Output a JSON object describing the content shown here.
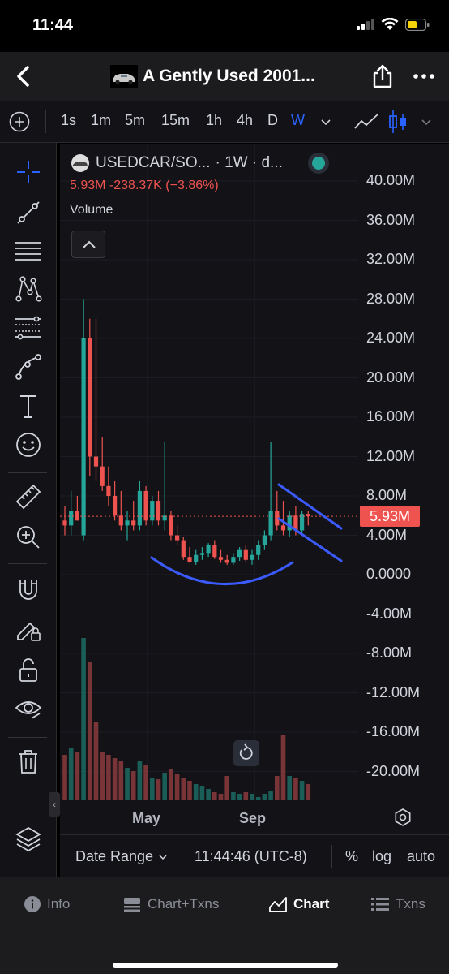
{
  "status_bar": {
    "time": "11:44"
  },
  "header": {
    "title": "A Gently Used 2001..."
  },
  "toolbar": {
    "timeframes": [
      "1s",
      "1m",
      "5m",
      "15m",
      "1h",
      "4h",
      "D",
      "W"
    ],
    "active_timeframe": "W"
  },
  "legend": {
    "symbol": "USEDCAR/SO...",
    "interval": "· 1W · d...",
    "price_change": "5.93M  -238.37K (−3.86%)",
    "volume_label": "Volume"
  },
  "price_tag": "5.93M",
  "chart_data": {
    "type": "candlestick",
    "y_ticks": [
      "40.00M",
      "36.00M",
      "32.00M",
      "28.00M",
      "24.00M",
      "20.00M",
      "16.00M",
      "12.00M",
      "8.00M",
      "4.00M",
      "0.0000",
      "-4.00M",
      "-8.00M",
      "-12.00M",
      "-16.00M",
      "-20.00M"
    ],
    "x_ticks": [
      "May",
      "Sep"
    ],
    "last_price": "5.93M",
    "colors": {
      "up": "#26a69a",
      "down": "#ef5350",
      "annotation": "#3b5bff"
    },
    "candles": [
      {
        "o": 5.5,
        "h": 7.0,
        "l": 4.0,
        "c": 5.0
      },
      {
        "o": 5.0,
        "h": 8.5,
        "l": 4.0,
        "c": 6.5
      },
      {
        "o": 6.5,
        "h": 8.0,
        "l": 5.5,
        "c": 5.5
      },
      {
        "o": 4.0,
        "h": 28.0,
        "l": 3.5,
        "c": 24.0
      },
      {
        "o": 24.0,
        "h": 26.0,
        "l": 10.0,
        "c": 12.0
      },
      {
        "o": 12.0,
        "h": 26.0,
        "l": 9.5,
        "c": 11.0
      },
      {
        "o": 11.0,
        "h": 14.0,
        "l": 8.5,
        "c": 9.0
      },
      {
        "o": 9.0,
        "h": 11.0,
        "l": 7.0,
        "c": 8.0
      },
      {
        "o": 8.0,
        "h": 9.5,
        "l": 5.5,
        "c": 6.0
      },
      {
        "o": 6.0,
        "h": 8.5,
        "l": 4.5,
        "c": 5.0
      },
      {
        "o": 5.0,
        "h": 6.5,
        "l": 3.5,
        "c": 5.5
      },
      {
        "o": 5.5,
        "h": 7.5,
        "l": 4.5,
        "c": 5.0
      },
      {
        "o": 5.0,
        "h": 9.5,
        "l": 4.5,
        "c": 8.5
      },
      {
        "o": 8.5,
        "h": 9.0,
        "l": 5.0,
        "c": 5.5
      },
      {
        "o": 5.5,
        "h": 8.0,
        "l": 5.0,
        "c": 7.5
      },
      {
        "o": 7.5,
        "h": 8.5,
        "l": 5.0,
        "c": 5.5
      },
      {
        "o": 5.5,
        "h": 13.5,
        "l": 4.5,
        "c": 6.0
      },
      {
        "o": 6.0,
        "h": 6.5,
        "l": 3.5,
        "c": 4.0
      },
      {
        "o": 4.0,
        "h": 5.0,
        "l": 3.0,
        "c": 3.5
      },
      {
        "o": 3.5,
        "h": 3.8,
        "l": 1.5,
        "c": 1.8
      },
      {
        "o": 1.8,
        "h": 2.8,
        "l": 1.2,
        "c": 1.3
      },
      {
        "o": 1.3,
        "h": 2.5,
        "l": 1.0,
        "c": 2.0
      },
      {
        "o": 2.0,
        "h": 2.8,
        "l": 1.5,
        "c": 2.2
      },
      {
        "o": 2.2,
        "h": 3.2,
        "l": 1.8,
        "c": 3.0
      },
      {
        "o": 3.0,
        "h": 3.5,
        "l": 1.6,
        "c": 1.8
      },
      {
        "o": 1.8,
        "h": 2.5,
        "l": 1.2,
        "c": 1.5
      },
      {
        "o": 1.5,
        "h": 2.0,
        "l": 1.0,
        "c": 1.2
      },
      {
        "o": 1.2,
        "h": 2.2,
        "l": 1.0,
        "c": 1.8
      },
      {
        "o": 1.8,
        "h": 2.8,
        "l": 1.4,
        "c": 2.5
      },
      {
        "o": 2.5,
        "h": 3.0,
        "l": 1.3,
        "c": 1.5
      },
      {
        "o": 1.5,
        "h": 2.5,
        "l": 1.0,
        "c": 2.0
      },
      {
        "o": 2.0,
        "h": 3.5,
        "l": 1.5,
        "c": 3.0
      },
      {
        "o": 3.0,
        "h": 4.5,
        "l": 2.5,
        "c": 4.0
      },
      {
        "o": 4.0,
        "h": 13.5,
        "l": 3.5,
        "c": 6.5
      },
      {
        "o": 6.5,
        "h": 8.5,
        "l": 4.5,
        "c": 5.0
      },
      {
        "o": 5.0,
        "h": 7.5,
        "l": 4.0,
        "c": 4.5
      },
      {
        "o": 4.5,
        "h": 6.5,
        "l": 3.8,
        "c": 6.0
      },
      {
        "o": 6.0,
        "h": 7.0,
        "l": 4.0,
        "c": 4.5
      },
      {
        "o": 4.5,
        "h": 6.5,
        "l": 4.2,
        "c": 6.17
      },
      {
        "o": 6.17,
        "h": 6.5,
        "l": 5.0,
        "c": 5.93
      }
    ],
    "volume_relative": [
      0.28,
      0.32,
      0.3,
      1.0,
      0.85,
      0.48,
      0.3,
      0.28,
      0.26,
      0.24,
      0.2,
      0.18,
      0.24,
      0.22,
      0.14,
      0.13,
      0.17,
      0.19,
      0.16,
      0.14,
      0.12,
      0.1,
      0.09,
      0.07,
      0.05,
      0.04,
      0.15,
      0.05,
      0.04,
      0.05,
      0.04,
      0.02,
      0.04,
      0.06,
      0.15,
      0.4,
      0.15,
      0.14,
      0.12,
      0.1
    ]
  },
  "bottom_bar": {
    "date_range": "Date Range",
    "time": "11:44:46 (UTC-8)",
    "percent": "%",
    "log": "log",
    "auto": "auto"
  },
  "tabs": [
    {
      "label": "Info",
      "icon": "info-icon"
    },
    {
      "label": "Chart+Txns",
      "icon": "chart-txns-icon"
    },
    {
      "label": "Chart",
      "icon": "chart-icon"
    },
    {
      "label": "Txns",
      "icon": "list-icon"
    }
  ],
  "active_tab": "Chart"
}
